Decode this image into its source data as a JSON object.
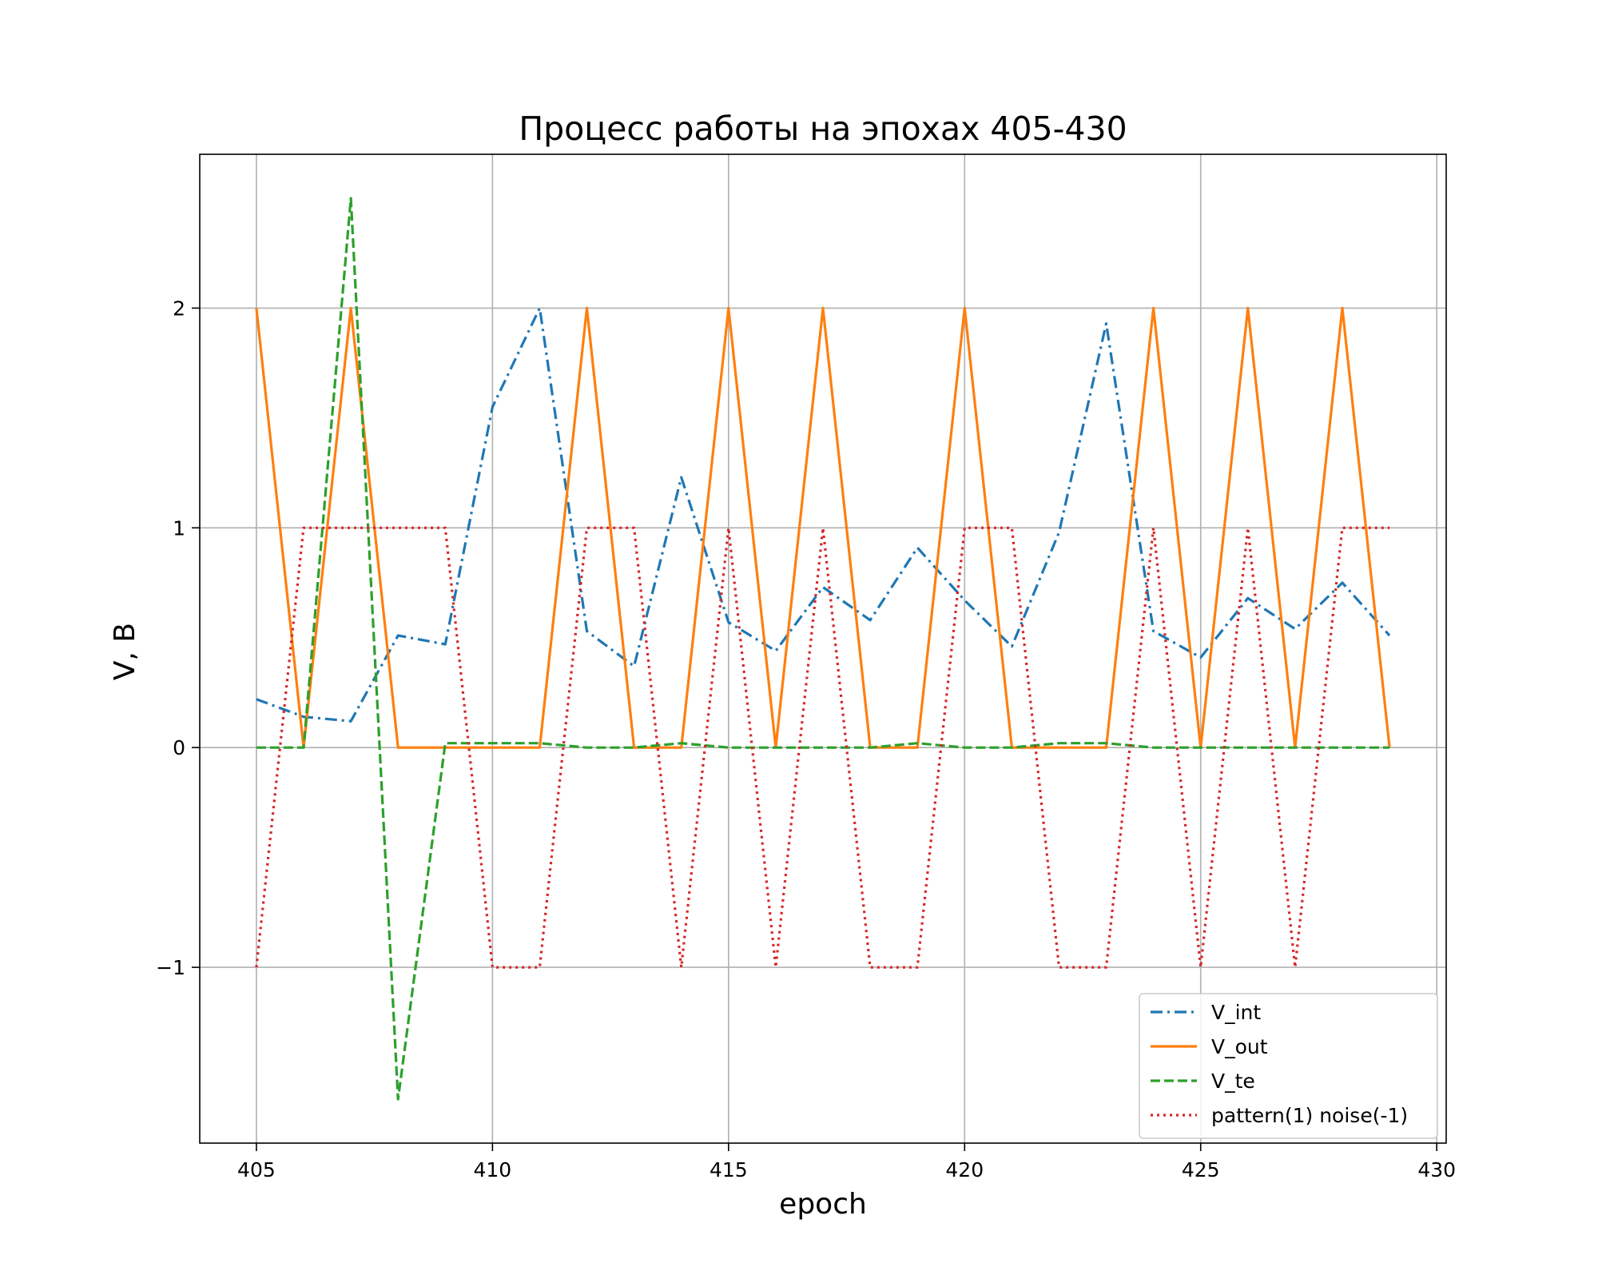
{
  "chart_data": {
    "type": "line",
    "title": "Процесс работы на эпохах 405-430",
    "xlabel": "epoch",
    "ylabel": "V, B",
    "xlim": [
      403.8,
      430.2
    ],
    "ylim": [
      -1.8,
      2.7
    ],
    "x_ticks": [
      405,
      410,
      415,
      420,
      425,
      430
    ],
    "x_tick_labels": [
      "405",
      "410",
      "415",
      "420",
      "425",
      "430"
    ],
    "y_ticks": [
      -1,
      0,
      1,
      2
    ],
    "y_tick_labels": [
      "−1",
      "0",
      "1",
      "2"
    ],
    "grid": true,
    "legend_position": "lower-right",
    "x": [
      405,
      406,
      407,
      408,
      409,
      410,
      411,
      412,
      413,
      414,
      415,
      416,
      417,
      418,
      419,
      420,
      421,
      422,
      423,
      424,
      425,
      426,
      427,
      428,
      429
    ],
    "series": [
      {
        "name": "V_int",
        "color": "#1f77b4",
        "style": "dashdot",
        "values": [
          0.22,
          0.14,
          0.12,
          0.51,
          0.47,
          1.55,
          2.0,
          0.53,
          0.37,
          1.23,
          0.57,
          0.44,
          0.73,
          0.58,
          0.91,
          0.67,
          0.46,
          0.98,
          1.93,
          0.53,
          0.41,
          0.68,
          0.54,
          0.75,
          0.51
        ]
      },
      {
        "name": "V_out",
        "color": "#ff7f0e",
        "style": "solid",
        "values": [
          2,
          0,
          2,
          0,
          0,
          0,
          0,
          2,
          0,
          0,
          2,
          0,
          2,
          0,
          0,
          2,
          0,
          0,
          0,
          2,
          0,
          2,
          0,
          2,
          0
        ]
      },
      {
        "name": "V_te",
        "color": "#2ca02c",
        "style": "dashed",
        "values": [
          0,
          0,
          2.5,
          -1.6,
          0.02,
          0.02,
          0.02,
          0,
          0,
          0.02,
          0,
          0,
          0,
          0,
          0.02,
          0,
          0,
          0.02,
          0.02,
          0,
          0,
          0,
          0,
          0,
          0
        ]
      },
      {
        "name": "pattern(1) noise(-1)",
        "color": "#d62728",
        "style": "dotted",
        "values": [
          -1,
          1,
          1,
          1,
          1,
          -1,
          -1,
          1,
          1,
          -1,
          1,
          -1,
          1,
          -1,
          -1,
          1,
          1,
          -1,
          -1,
          1,
          -1,
          1,
          -1,
          1,
          1
        ]
      }
    ]
  }
}
